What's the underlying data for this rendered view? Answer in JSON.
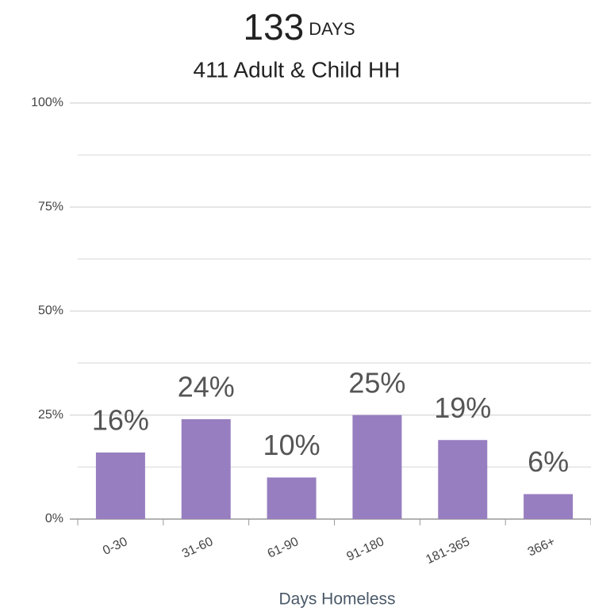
{
  "chart_data": {
    "type": "bar",
    "title": "133",
    "title_unit": "DAYS",
    "subtitle": "411 Adult & Child HH",
    "x_label": "Days Homeless",
    "categories": [
      "0-30",
      "31-60",
      "61-90",
      "91-180",
      "181-365",
      "366+"
    ],
    "values": [
      16,
      24,
      10,
      25,
      19,
      6
    ],
    "value_labels": [
      "16%",
      "24%",
      "10%",
      "25%",
      "19%",
      "6%"
    ],
    "color": "#977ec0",
    "ylim": [
      0,
      100
    ],
    "yticks": [
      {
        "value": 0,
        "label": "0%"
      },
      {
        "value": 25,
        "label": "25%"
      },
      {
        "value": 50,
        "label": "50%"
      },
      {
        "value": 75,
        "label": "75%"
      },
      {
        "value": 100,
        "label": "100%"
      }
    ],
    "minor_yticks": [
      12.5,
      37.5,
      62.5,
      87.5
    ],
    "grid": true
  }
}
